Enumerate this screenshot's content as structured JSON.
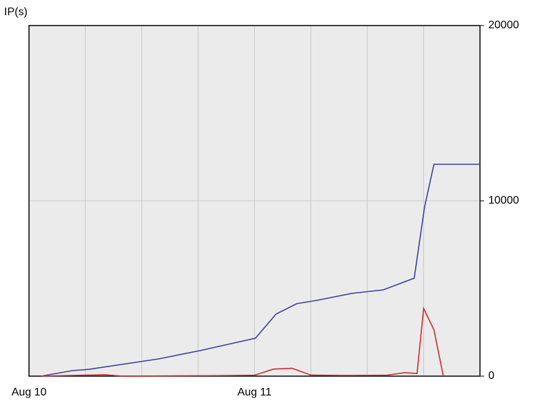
{
  "chart_data": {
    "type": "line",
    "ylabel": "IP(s)",
    "xlim": [
      0,
      48
    ],
    "xticks": [
      {
        "value": 0,
        "label": "Aug 10"
      },
      {
        "value": 24,
        "label": "Aug 11"
      }
    ],
    "xgrid": [
      6,
      12,
      18,
      30,
      36,
      42
    ],
    "ylim": [
      0,
      20000
    ],
    "yticks": [
      0,
      10000,
      20000
    ],
    "grid": true,
    "yaxis_side": "right",
    "series": [
      {
        "name": "blue",
        "color": "#3a3f9a",
        "x": [
          1.3,
          4.6,
          6.4,
          13.8,
          18.2,
          24.1,
          26.3,
          28.5,
          30.7,
          34.4,
          37.7,
          41,
          42.1,
          43.1,
          48
        ],
        "values": [
          0,
          315,
          390,
          985,
          1457,
          2165,
          3543,
          4134,
          4331,
          4724,
          4921,
          5591,
          9646,
          12087,
          12087
        ]
      },
      {
        "name": "red",
        "color": "#cc2a2a",
        "x": [
          1.3,
          8,
          10,
          20,
          24,
          26,
          28,
          30,
          33,
          38,
          40,
          41.3,
          42,
          43.1,
          44.1
        ],
        "values": [
          0,
          80,
          0,
          30,
          50,
          400,
          450,
          60,
          40,
          50,
          200,
          150,
          3860,
          2640,
          0
        ]
      }
    ]
  }
}
